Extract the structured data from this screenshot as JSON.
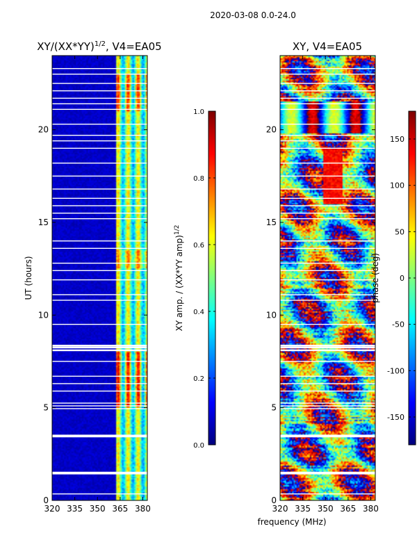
{
  "figure_title": "2020-03-08 0.0-24.0",
  "colors": {
    "blank": "#ffffff",
    "axis": "#000000",
    "jet": [
      "#00007f",
      "#0000ff",
      "#007fff",
      "#00ffff",
      "#7fff7f",
      "#ffff00",
      "#ff7f00",
      "#ff0000",
      "#7f0000"
    ]
  },
  "chart_data": [
    {
      "type": "heatmap",
      "title": "XY/(XX*YY)",
      "title_sup": "1/2",
      "title_suffix": ", V4=EA05",
      "xlabel": "",
      "ylabel": "UT (hours)",
      "xlim": [
        320,
        383
      ],
      "ylim": [
        0,
        24
      ],
      "xticks": [
        320,
        335,
        350,
        365,
        380
      ],
      "yticks": [
        0,
        5,
        10,
        15,
        20
      ],
      "colorbar": {
        "label": "XY amp. / (XX*YY amp)",
        "label_sup": "1/2",
        "range": [
          0.0,
          1.0
        ],
        "ticks": [
          "0.0",
          "0.2",
          "0.4",
          "0.6",
          "0.8",
          "1.0"
        ]
      },
      "description_of_values": "Mostly ~0.05 below 362 MHz; patchy 0.3-0.7 between 362-383 MHz, peaking ~0.8-0.9 near 6-8 h and 21-22 h"
    },
    {
      "type": "heatmap",
      "title": "XY, V4=EA05",
      "xlabel": "frequency (MHz)",
      "ylabel": "",
      "xlim": [
        320,
        383
      ],
      "ylim": [
        0,
        24
      ],
      "xticks": [
        320,
        335,
        350,
        365,
        380
      ],
      "yticks": [
        0,
        5,
        10,
        15,
        20
      ],
      "colorbar": {
        "label": "phase (deg)",
        "range": [
          -180,
          180
        ],
        "ticks": [
          "-150",
          "-100",
          "-50",
          "0",
          "50",
          "100",
          "150"
        ]
      }
    }
  ]
}
